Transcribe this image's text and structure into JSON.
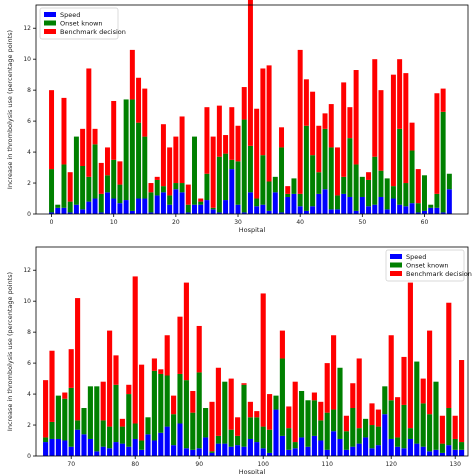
{
  "chart_data": [
    {
      "type": "bar",
      "stacked": true,
      "xlabel": "Hospital",
      "ylabel": "Increase in thrombolysis use (percentage points)",
      "xlim": [
        -2.5,
        67
      ],
      "ylim": [
        0,
        13.5
      ],
      "xticks": [
        0,
        10,
        20,
        30,
        40,
        50,
        60
      ],
      "yticks": [
        0,
        2,
        4,
        6,
        8,
        10,
        12
      ],
      "legend_position": "top-left",
      "grid": false,
      "x": [
        0,
        1,
        2,
        3,
        4,
        5,
        6,
        7,
        8,
        9,
        10,
        11,
        12,
        13,
        14,
        15,
        16,
        17,
        18,
        19,
        20,
        21,
        22,
        23,
        24,
        25,
        26,
        27,
        28,
        29,
        30,
        31,
        32,
        33,
        34,
        35,
        36,
        37,
        38,
        39,
        40,
        41,
        42,
        43,
        44,
        45,
        46,
        47,
        48,
        49,
        50,
        51,
        52,
        53,
        54,
        55,
        56,
        57,
        58,
        59,
        60,
        61,
        62,
        63,
        64
      ],
      "series": [
        {
          "name": "Speed",
          "color": "#0000ff",
          "values": [
            0.1,
            0.4,
            0.4,
            0.1,
            0.6,
            0.3,
            0.8,
            1.0,
            0.1,
            1.4,
            1.0,
            0.7,
            0.9,
            0.2,
            1.0,
            1.0,
            0.1,
            1.2,
            1.4,
            0.6,
            1.6,
            1.4,
            0.1,
            0.6,
            0.6,
            0.9,
            0.3,
            0.1,
            0.9,
            2.9,
            0.6,
            0.1,
            1.4,
            0.5,
            0.6,
            0.2,
            1.4,
            0.1,
            1.1,
            1.3,
            0.5,
            0.2,
            0.5,
            1.3,
            1.6,
            0.3,
            0.3,
            1.3,
            1.1,
            0.2,
            1.1,
            0.5,
            0.6,
            1.1,
            0.3,
            1.0,
            0.6,
            0.5,
            0.7,
            0.1,
            0.2,
            0.4,
            0.4,
            0.1,
            1.6
          ]
        },
        {
          "name": "Onset known",
          "color": "#008000",
          "values": [
            2.8,
            0.2,
            2.8,
            0.7,
            4.4,
            2.8,
            1.6,
            3.5,
            1.2,
            1.1,
            2.5,
            1.2,
            6.5,
            7.2,
            4.9,
            4.0,
            1.3,
            1.0,
            0.4,
            0.6,
            0.4,
            0.6,
            0.5,
            4.4,
            0.2,
            1.7,
            0.1,
            3.6,
            3.0,
            0.6,
            2.8,
            6.0,
            3.0,
            0.5,
            3.2,
            1.9,
            1.0,
            4.2,
            0.2,
            1.0,
            0.8,
            5.5,
            3.3,
            1.4,
            3.9,
            4.0,
            0.9,
            1.1,
            3.8,
            3.0,
            1.3,
            1.7,
            3.1,
            1.7,
            2.0,
            0.8,
            4.9,
            1.5,
            3.4,
            0.6,
            2.3,
            0.2,
            0.9,
            6.5,
            1.0
          ]
        },
        {
          "name": "Benchmark decision",
          "color": "#ff0000",
          "values": [
            5.1,
            0.0,
            4.3,
            1.9,
            0.0,
            2.4,
            7.0,
            1.0,
            2.0,
            1.8,
            3.8,
            1.5,
            0.0,
            3.2,
            2.9,
            3.1,
            0.6,
            0.2,
            4.0,
            3.1,
            3.0,
            4.3,
            1.3,
            0.0,
            0.2,
            4.3,
            4.6,
            3.3,
            1.2,
            3.4,
            2.3,
            2.1,
            9.9,
            5.8,
            5.6,
            7.5,
            0.0,
            1.3,
            0.5,
            0.0,
            9.3,
            3.0,
            4.1,
            3.0,
            1.0,
            2.8,
            3.1,
            6.1,
            2.0,
            6.1,
            0.0,
            0.5,
            6.3,
            5.2,
            0.0,
            7.2,
            4.5,
            7.1,
            1.8,
            2.2,
            0.0,
            0.0,
            6.5,
            1.5,
            0.0
          ]
        }
      ]
    },
    {
      "type": "bar",
      "stacked": true,
      "xlabel": "Hospital",
      "ylabel": "Increase in thrombolysis use (percentage points)",
      "xlim": [
        64.5,
        132
      ],
      "ylim": [
        0,
        13.5
      ],
      "xticks": [
        70,
        80,
        90,
        100,
        110,
        120,
        130
      ],
      "yticks": [
        0,
        2,
        4,
        6,
        8,
        10,
        12
      ],
      "legend_position": "top-right",
      "grid": false,
      "x": [
        66,
        67,
        68,
        69,
        70,
        71,
        72,
        73,
        74,
        75,
        76,
        77,
        78,
        79,
        80,
        81,
        82,
        83,
        84,
        85,
        86,
        87,
        88,
        89,
        90,
        91,
        92,
        93,
        94,
        95,
        96,
        97,
        98,
        99,
        100,
        101,
        102,
        103,
        104,
        105,
        106,
        107,
        108,
        109,
        110,
        111,
        112,
        113,
        114,
        115,
        116,
        117,
        118,
        119,
        120,
        121,
        122,
        123,
        124,
        125,
        126,
        127,
        128,
        129,
        130,
        131
      ],
      "series": [
        {
          "name": "Speed",
          "color": "#0000ff",
          "values": [
            0.9,
            1.1,
            1.1,
            1.0,
            0.6,
            1.7,
            1.4,
            1.1,
            0.3,
            0.6,
            0.5,
            0.9,
            0.8,
            0.6,
            1.1,
            0.4,
            1.4,
            1.0,
            1.5,
            1.9,
            0.7,
            2.1,
            0.5,
            0.4,
            0.5,
            1.2,
            0.2,
            0.8,
            0.8,
            0.6,
            0.7,
            0.6,
            1.1,
            0.9,
            0.5,
            0.2,
            3.0,
            1.3,
            0.4,
            0.5,
            1.2,
            0.6,
            1.3,
            1.0,
            0.4,
            1.6,
            1.1,
            0.4,
            0.6,
            0.8,
            1.2,
            0.5,
            0.7,
            2.7,
            1.1,
            0.6,
            0.5,
            1.1,
            0.8,
            0.6,
            0.3,
            0.4,
            0.2,
            0.7,
            0.4,
            0.4
          ]
        },
        {
          "name": "Onset known",
          "color": "#008000",
          "values": [
            0.3,
            1.1,
            2.8,
            2.7,
            3.8,
            0.6,
            1.7,
            3.4,
            4.2,
            1.7,
            1.4,
            3.7,
            1.1,
            3.4,
            1.0,
            0.6,
            1.1,
            4.5,
            3.8,
            3.3,
            2.0,
            3.2,
            4.4,
            2.4,
            4.9,
            1.9,
            0.1,
            0.5,
            4.0,
            1.1,
            0.6,
            4.0,
            1.4,
            1.6,
            1.4,
            1.5,
            0.9,
            5.0,
            1.4,
            0.4,
            3.0,
            3.0,
            2.3,
            1.3,
            2.4,
            1.4,
            4.6,
            1.2,
            2.5,
            1.0,
            1.2,
            1.5,
            1.2,
            1.8,
            2.5,
            0.6,
            2.8,
            0.7,
            5.3,
            2.8,
            2.4,
            4.4,
            0.6,
            2.4,
            0.7,
            0.5
          ]
        },
        {
          "name": "Benchmark decision",
          "color": "#ff0000",
          "values": [
            3.7,
            4.6,
            0.0,
            0.4,
            2.5,
            7.9,
            0.0,
            0.0,
            0.0,
            2.5,
            6.2,
            1.9,
            0.5,
            0.6,
            9.5,
            4.9,
            0.0,
            0.8,
            0.3,
            2.6,
            1.2,
            3.7,
            6.3,
            1.4,
            3.0,
            0.0,
            3.2,
            4.4,
            0.0,
            3.3,
            1.2,
            0.1,
            1.0,
            0.4,
            8.6,
            2.3,
            0.0,
            1.8,
            1.4,
            3.9,
            0.0,
            0.0,
            0.5,
            1.2,
            3.2,
            4.8,
            0.0,
            1.0,
            1.6,
            4.5,
            0.0,
            1.4,
            1.1,
            0.0,
            4.2,
            2.6,
            3.1,
            9.4,
            0.0,
            1.6,
            5.4,
            0.0,
            1.8,
            6.8,
            1.5,
            5.3
          ]
        }
      ]
    }
  ]
}
